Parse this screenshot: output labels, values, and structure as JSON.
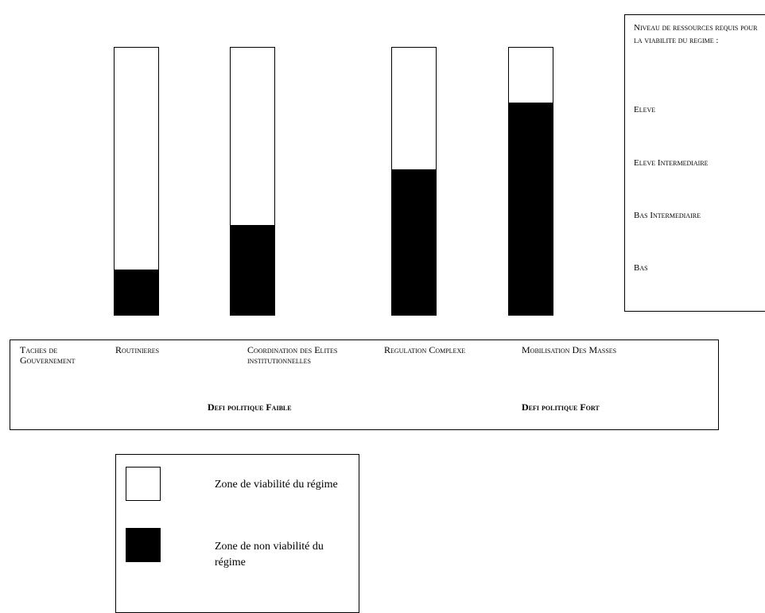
{
  "columns": [
    {
      "name": "Taches de gouvernement routinieres",
      "non_viable_fraction": 0.17
    },
    {
      "name": "Coordination des elites institutionnelles",
      "non_viable_fraction": 0.335
    },
    {
      "name": "Regulation complexe",
      "non_viable_fraction": 0.545
    },
    {
      "name": "Mobilisation des masses",
      "non_viable_fraction": 0.795
    }
  ],
  "scale": {
    "title": "Niveau de ressources requis pour la viabilite du regime :",
    "levels": [
      "Eleve",
      "Eleve Intermediaire",
      "Bas Intermediaire",
      "Bas"
    ]
  },
  "tasks": {
    "labels": [
      "Taches de Gouvernement",
      "Routinieres",
      "Coordination des Elites institutionnelles",
      "Regulation Complexe",
      "Mobilisation Des Masses"
    ],
    "challenges": [
      "Defi politique Faible",
      "Defi politique Fort"
    ]
  },
  "legend": [
    {
      "label": "Zone de viabilité du régime",
      "swatch_color": "#ffffff"
    },
    {
      "label": "Zone de non viabilité du régime",
      "swatch_color": "#000000"
    }
  ]
}
